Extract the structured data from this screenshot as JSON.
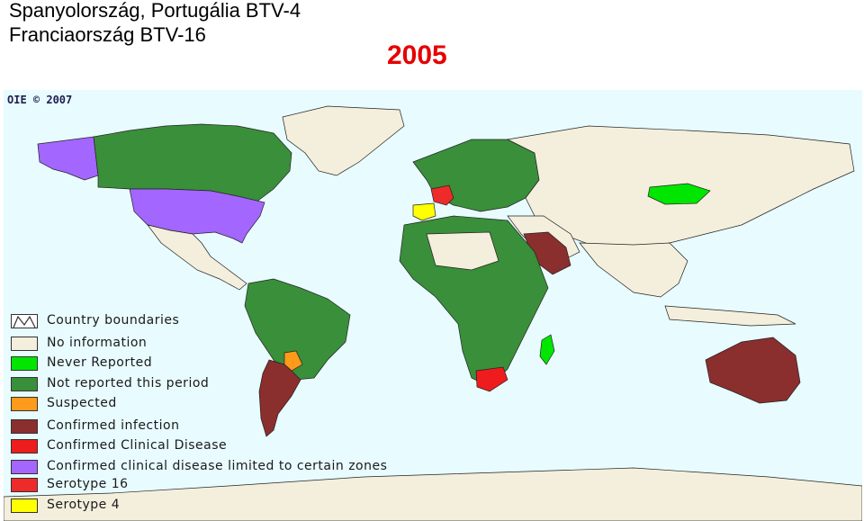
{
  "title_line1": "Spanyolország, Portugália BTV-4",
  "title_line2": "Franciaország BTV-16",
  "year": "2005",
  "credit": "OIE © 2007",
  "colors": {
    "ocean": "#e8fbff",
    "no_information": "#f3efdc",
    "never_reported": "#00e600",
    "not_reported_this_period": "#3a8f3a",
    "suspected": "#ff9a1a",
    "confirmed_infection": "#8b2e2e",
    "confirmed_clinical_disease": "#ee1c1c",
    "confirmed_clinical_limited": "#a366ff",
    "serotype_16": "#ee2b2b",
    "serotype_4": "#ffff00"
  },
  "legend": [
    {
      "label": "Country boundaries",
      "color": "#ffffff",
      "icon": "boundary-icon"
    },
    {
      "label": "No information",
      "color": "#f3efdc"
    },
    {
      "label": "Never Reported",
      "color": "#00e600"
    },
    {
      "label": "Not reported this period",
      "color": "#3a8f3a"
    },
    {
      "label": "Suspected",
      "color": "#ff9a1a"
    },
    {
      "label": "Confirmed infection",
      "color": "#8b2e2e"
    },
    {
      "label": "Confirmed Clinical Disease",
      "color": "#ee1c1c"
    },
    {
      "label": "Confirmed clinical disease limited to certain zones",
      "color": "#a366ff"
    },
    {
      "label": "Serotype 16",
      "color": "#ee2b2b"
    },
    {
      "label": "Serotype 4",
      "color": "#ffff00"
    }
  ],
  "regions": [
    {
      "name": "Alaska",
      "status": "confirmed_clinical_limited"
    },
    {
      "name": "Canada",
      "status": "not_reported_this_period"
    },
    {
      "name": "USA",
      "status": "confirmed_clinical_limited"
    },
    {
      "name": "Mexico",
      "status": "no_information"
    },
    {
      "name": "Greenland",
      "status": "no_information"
    },
    {
      "name": "South America north",
      "status": "not_reported_this_period"
    },
    {
      "name": "Paraguay",
      "status": "suspected"
    },
    {
      "name": "Argentina",
      "status": "confirmed_infection"
    },
    {
      "name": "Spain / Portugal",
      "status": "serotype_4"
    },
    {
      "name": "France",
      "status": "serotype_16"
    },
    {
      "name": "Russia",
      "status": "no_information"
    },
    {
      "name": "Mongolia",
      "status": "never_reported"
    },
    {
      "name": "Saudi Arabia",
      "status": "confirmed_infection"
    },
    {
      "name": "Africa",
      "status": "not_reported_this_period"
    },
    {
      "name": "South Africa",
      "status": "confirmed_clinical_disease"
    },
    {
      "name": "Madagascar",
      "status": "never_reported"
    },
    {
      "name": "Australia",
      "status": "confirmed_infection"
    },
    {
      "name": "Antarctica",
      "status": "no_information"
    }
  ]
}
